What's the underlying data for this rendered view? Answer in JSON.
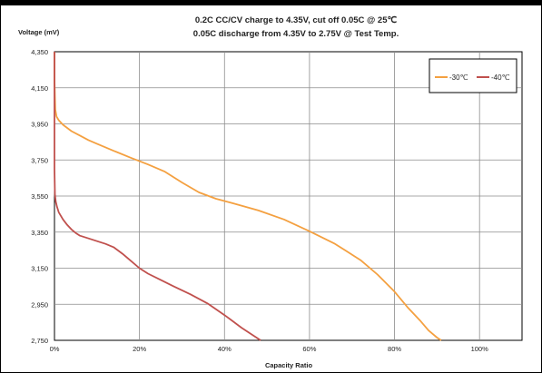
{
  "chart_data": {
    "type": "line",
    "title_lines": [
      "0.2C CC/CV charge to 4.35V, cut off 0.05C @ 25℃",
      "0.05C discharge from 4.35V to 2.75V @ Test Temp."
    ],
    "ylabel": "Voltage (mV)",
    "xlabel": "Capacity Ratio",
    "xlim": [
      0,
      110
    ],
    "ylim": [
      2750,
      4350
    ],
    "x_ticks": [
      0,
      20,
      40,
      60,
      80,
      100
    ],
    "x_tick_labels": [
      "0%",
      "20%",
      "40%",
      "60%",
      "80%",
      "100%"
    ],
    "y_ticks": [
      2750,
      2950,
      3150,
      3350,
      3550,
      3750,
      3950,
      4150,
      4350
    ],
    "y_tick_labels": [
      "2,750",
      "2,950",
      "3,150",
      "3,350",
      "3,550",
      "3,750",
      "3,950",
      "4,150",
      "4,350"
    ],
    "grid": true,
    "legend_position": "top-right",
    "series": [
      {
        "name": "-30℃",
        "color": "#F4A040",
        "x": [
          0,
          0,
          0.1,
          0.2,
          0.5,
          1,
          2,
          4,
          6,
          8,
          10,
          14,
          18,
          22,
          26,
          30,
          34,
          38,
          42,
          48,
          54,
          60,
          66,
          72,
          76,
          80,
          83,
          86,
          88,
          90,
          91
        ],
        "y": [
          4350,
          4200,
          4100,
          4030,
          3990,
          3970,
          3945,
          3910,
          3885,
          3860,
          3840,
          3800,
          3762,
          3725,
          3685,
          3625,
          3570,
          3535,
          3510,
          3470,
          3420,
          3355,
          3285,
          3195,
          3115,
          3020,
          2935,
          2860,
          2805,
          2765,
          2750
        ]
      },
      {
        "name": "-40℃",
        "color": "#C0504D",
        "x": [
          0,
          0,
          0.1,
          0.3,
          0.6,
          1,
          2,
          3,
          4,
          5,
          6,
          8,
          10,
          12,
          14,
          16,
          18,
          20,
          22,
          25,
          28,
          32,
          36,
          40,
          44,
          48.5
        ],
        "y": [
          4350,
          3700,
          3560,
          3520,
          3490,
          3460,
          3420,
          3390,
          3365,
          3345,
          3330,
          3315,
          3300,
          3285,
          3265,
          3230,
          3190,
          3150,
          3120,
          3085,
          3050,
          3005,
          2955,
          2890,
          2820,
          2750
        ]
      }
    ]
  }
}
